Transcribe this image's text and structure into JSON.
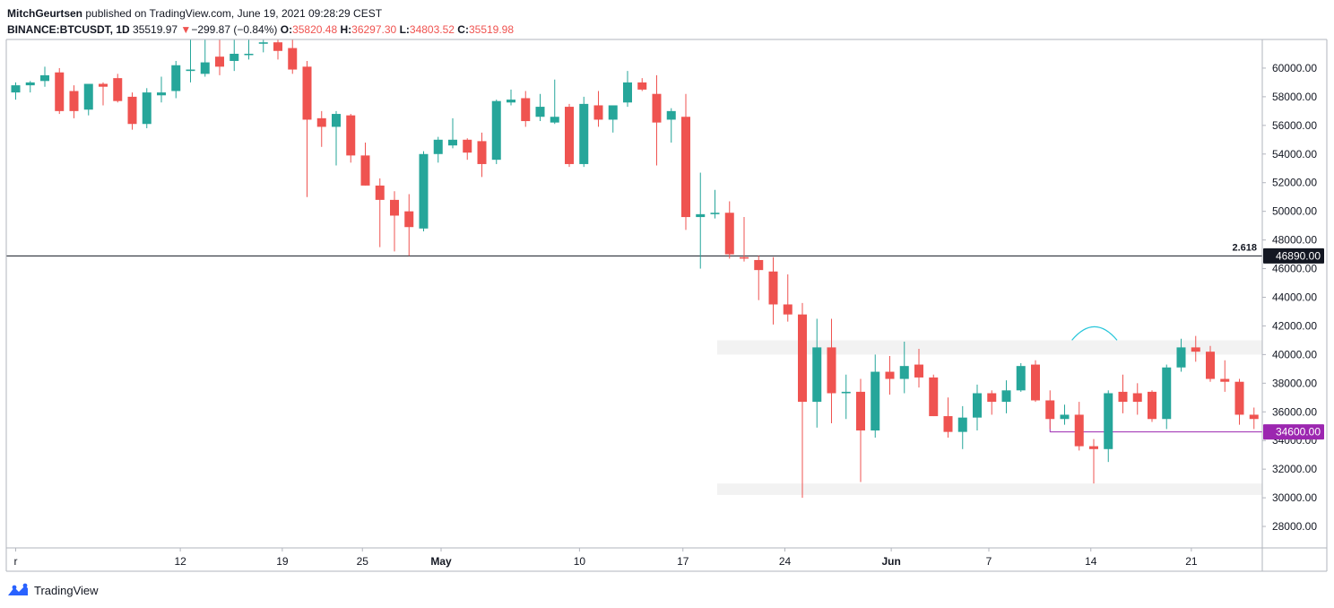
{
  "header": {
    "author": "MitchGeurtsen",
    "published_text": "published on TradingView.com, June 19, 2021 09:28:29 CEST",
    "symbol": "BINANCE:BTCUSDT, 1D",
    "last": "35519.97",
    "change_arrow": "▼",
    "change": "−299.87 (−0.84%)",
    "o_label": "O:",
    "o_value": "35820.48",
    "h_label": "H:",
    "h_value": "36297.30",
    "l_label": "L:",
    "l_value": "34803.52",
    "c_label": "C:",
    "c_value": "35519.98"
  },
  "footer": {
    "brand": "TradingView"
  },
  "colors": {
    "up": "#26a69a",
    "down": "#ef5350",
    "level_line": "#131722",
    "support_line": "#9c27b0",
    "arc": "#26c6da",
    "zone": "#f2f2f2"
  },
  "chart_data": {
    "type": "candlestick",
    "interval": "1D",
    "ylim": [
      26500,
      62000
    ],
    "y_ticks": [
      28000,
      30000,
      32000,
      34000,
      36000,
      38000,
      40000,
      42000,
      44000,
      46000,
      48000,
      50000,
      52000,
      54000,
      56000,
      58000,
      60000
    ],
    "x_labels": [
      "r",
      "12",
      "19",
      "25",
      "May",
      "10",
      "17",
      "24",
      "Jun",
      "7",
      "14",
      "21"
    ],
    "fib_level": {
      "label": "2.618",
      "price": 46890,
      "price_label": "46890.00"
    },
    "support_level": {
      "price": 34600,
      "price_label": "34600.00"
    },
    "zones": [
      {
        "from": 40000,
        "to": 41000
      },
      {
        "from": 30200,
        "to": 31000
      }
    ],
    "candles": [
      [
        58300,
        59000,
        57800,
        58800
      ],
      [
        58800,
        59100,
        58300,
        59000
      ],
      [
        59100,
        60100,
        58700,
        59500
      ],
      [
        59700,
        60000,
        56800,
        57000
      ],
      [
        58400,
        58800,
        56500,
        57000
      ],
      [
        57100,
        58800,
        56700,
        58900
      ],
      [
        58900,
        59000,
        57400,
        58700
      ],
      [
        59300,
        59600,
        57600,
        57700
      ],
      [
        58000,
        58300,
        55700,
        56100
      ],
      [
        56100,
        58600,
        55800,
        58300
      ],
      [
        58100,
        59400,
        57600,
        58300
      ],
      [
        58400,
        60500,
        57900,
        60200
      ],
      [
        59800,
        62000,
        59000,
        59900
      ],
      [
        59600,
        62000,
        59400,
        60400
      ],
      [
        60800,
        62000,
        59500,
        60100
      ],
      [
        60500,
        62000,
        59800,
        61000
      ],
      [
        61000,
        62000,
        60600,
        61000
      ],
      [
        61700,
        62000,
        61100,
        61800
      ],
      [
        61800,
        62000,
        60600,
        61200
      ],
      [
        61400,
        62000,
        59600,
        59900
      ],
      [
        60100,
        60500,
        51000,
        56400
      ],
      [
        56500,
        57000,
        54500,
        55900
      ],
      [
        55900,
        57000,
        53200,
        56800
      ],
      [
        56700,
        56800,
        53400,
        53900
      ],
      [
        53900,
        54800,
        51800,
        51800
      ],
      [
        51800,
        52300,
        47500,
        50800
      ],
      [
        50800,
        51400,
        47200,
        49700
      ],
      [
        50000,
        51200,
        46900,
        48900
      ],
      [
        48800,
        54200,
        48600,
        54000
      ],
      [
        54000,
        55200,
        53400,
        55000
      ],
      [
        54600,
        56500,
        54400,
        55000
      ],
      [
        55000,
        55100,
        53600,
        54100
      ],
      [
        54900,
        55500,
        52400,
        53300
      ],
      [
        53600,
        57800,
        53300,
        57700
      ],
      [
        57600,
        58500,
        57400,
        57800
      ],
      [
        57900,
        58400,
        55900,
        56300
      ],
      [
        56600,
        58200,
        56300,
        57300
      ],
      [
        56200,
        59200,
        56100,
        56600
      ],
      [
        57300,
        57500,
        53100,
        53300
      ],
      [
        53300,
        58000,
        53100,
        57500
      ],
      [
        57400,
        58400,
        55900,
        56400
      ],
      [
        56400,
        57300,
        55500,
        57400
      ],
      [
        57600,
        59800,
        57300,
        59000
      ],
      [
        59000,
        59300,
        58400,
        58500
      ],
      [
        58200,
        59500,
        53200,
        56200
      ],
      [
        56400,
        57200,
        54800,
        57000
      ],
      [
        56600,
        58200,
        48700,
        49600
      ],
      [
        49600,
        52700,
        46000,
        49800
      ],
      [
        49800,
        51500,
        49500,
        49900
      ],
      [
        49900,
        50700,
        46700,
        47000
      ],
      [
        46800,
        49600,
        46500,
        46700
      ],
      [
        46600,
        46900,
        43800,
        45900
      ],
      [
        45800,
        46800,
        42100,
        43500
      ],
      [
        43500,
        45600,
        42300,
        42800
      ],
      [
        42800,
        43600,
        30000,
        36700
      ],
      [
        36700,
        42500,
        34900,
        40500
      ],
      [
        40500,
        42500,
        35200,
        37300
      ],
      [
        37300,
        38600,
        35500,
        37400
      ],
      [
        37400,
        38300,
        31100,
        34700
      ],
      [
        34700,
        40000,
        34200,
        38800
      ],
      [
        38800,
        39900,
        37200,
        38300
      ],
      [
        38300,
        40900,
        37300,
        39200
      ],
      [
        39300,
        40400,
        37700,
        38400
      ],
      [
        38400,
        38600,
        35700,
        35700
      ],
      [
        35700,
        37000,
        34200,
        34600
      ],
      [
        34600,
        36400,
        33400,
        35600
      ],
      [
        35600,
        37900,
        34700,
        37300
      ],
      [
        37300,
        37500,
        35800,
        36700
      ],
      [
        36700,
        38200,
        35900,
        37500
      ],
      [
        37500,
        39400,
        37400,
        39200
      ],
      [
        39300,
        39600,
        36700,
        36800
      ],
      [
        36800,
        37500,
        34800,
        35500
      ],
      [
        35500,
        36500,
        35100,
        35800
      ],
      [
        35800,
        36700,
        33300,
        33600
      ],
      [
        33600,
        34100,
        31000,
        33400
      ],
      [
        33400,
        37500,
        32500,
        37300
      ],
      [
        37400,
        38600,
        35900,
        36700
      ],
      [
        37300,
        38000,
        35800,
        36700
      ],
      [
        37400,
        37500,
        35300,
        35500
      ],
      [
        35500,
        39300,
        34800,
        39100
      ],
      [
        39100,
        41100,
        38800,
        40500
      ],
      [
        40500,
        41300,
        39500,
        40200
      ],
      [
        40200,
        40600,
        38100,
        38300
      ],
      [
        38300,
        39600,
        37400,
        38100
      ],
      [
        38100,
        38300,
        35100,
        35800
      ],
      [
        35800,
        36300,
        34800,
        35500
      ]
    ]
  }
}
